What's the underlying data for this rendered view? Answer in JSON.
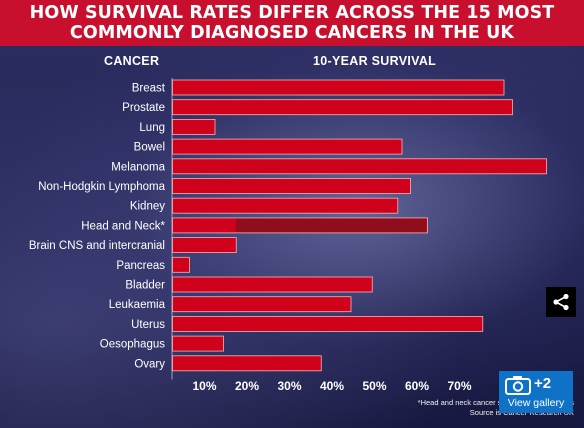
{
  "title": {
    "line1": "HOW SURVIVAL RATES DIFFER ACROSS THE 15 MOST",
    "line2": "COMMONLY DIAGNOSED CANCERS IN THE UK"
  },
  "columns": {
    "cancer": "CANCER",
    "survival": "10-YEAR SURVIVAL"
  },
  "chart_data": {
    "type": "bar",
    "orientation": "horizontal",
    "title": "HOW SURVIVAL RATES DIFFER ACROSS THE 15 MOST COMMONLY DIAGNOSED CANCERS IN THE UK",
    "xlabel": "",
    "ylabel": "",
    "categories": [
      "Breast",
      "Prostate",
      "Lung",
      "Bowel",
      "Melanoma",
      "Non-Hodgkin Lymphoma",
      "Kidney",
      "Head and Neck*",
      "Brain CNS and intercranial",
      "Pancreas",
      "Bladder",
      "Leukaemia",
      "Uterus",
      "Oesophagus",
      "Ovary"
    ],
    "values": [
      78,
      80,
      10,
      54,
      88,
      56,
      53,
      60,
      15,
      4,
      47,
      42,
      73,
      12,
      35
    ],
    "head_and_neck_lower_bound": 15,
    "xlim": [
      0,
      90
    ],
    "xticks": [
      10,
      20,
      30,
      40,
      50,
      60,
      70
    ],
    "xtick_labels": [
      "10%",
      "20%",
      "30%",
      "40%",
      "50%",
      "60%",
      "70%"
    ],
    "grid": false,
    "bar_color": "#d0021b",
    "bar_border_color": "#f4b3b3"
  },
  "footnote": {
    "line1": "*Head and neck cancer survival rates vary by s",
    "line2": "Source is Cancer Research UK"
  },
  "gallery": {
    "count": "+2",
    "label": "View gallery",
    "icon": "camera-icon"
  },
  "share": {
    "icon": "share-icon"
  },
  "colors": {
    "banner": "#c8102e",
    "gallery_button": "#0f72c7"
  }
}
